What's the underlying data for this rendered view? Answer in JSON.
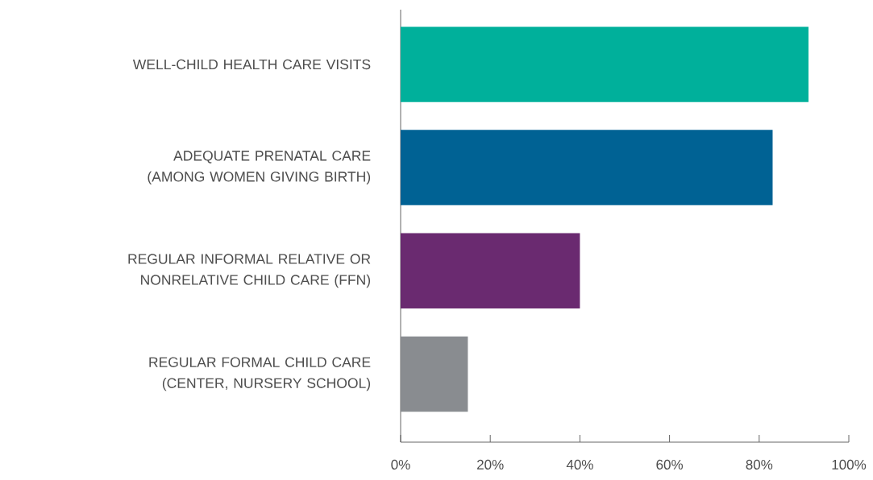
{
  "chart_data": {
    "type": "bar",
    "orientation": "horizontal",
    "categories": [
      "WELL-CHILD HEALTH CARE VISITS",
      "ADEQUATE PRENATAL CARE (AMONG WOMEN GIVING BIRTH)",
      "REGULAR INFORMAL RELATIVE OR NONRELATIVE CHILD CARE (FFN)",
      "REGULAR FORMAL CHILD CARE (CENTER, NURSERY SCHOOL)"
    ],
    "values": [
      91,
      83,
      40,
      15
    ],
    "colors": [
      "#00b09b",
      "#006294",
      "#6a2a70",
      "#898c90"
    ],
    "xlim": [
      0,
      100
    ],
    "xticks": [
      {
        "value": 0,
        "label": "0%"
      },
      {
        "value": 20,
        "label": "20%"
      },
      {
        "value": 40,
        "label": "40%"
      },
      {
        "value": 60,
        "label": "60%"
      },
      {
        "value": 80,
        "label": "80%"
      },
      {
        "value": 100,
        "label": "100%"
      }
    ]
  }
}
